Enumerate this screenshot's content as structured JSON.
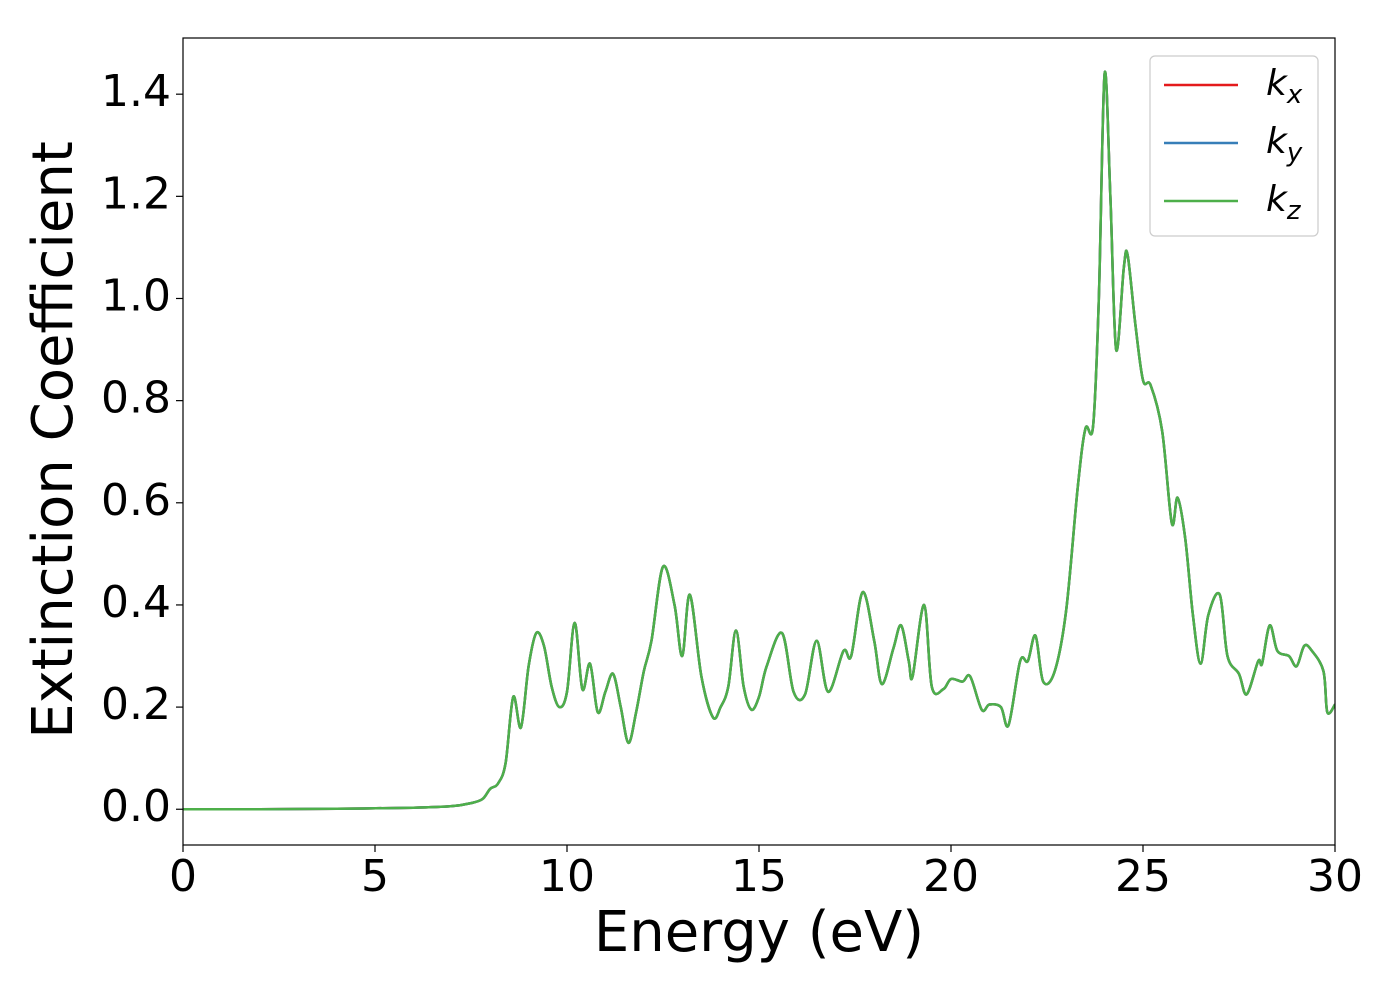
{
  "chart_data": {
    "type": "line",
    "xlabel": "Energy (eV)",
    "ylabel": "Extinction Coefficient",
    "x": [
      0,
      2,
      4,
      6,
      7,
      7.5,
      7.8,
      8,
      8.2,
      8.4,
      8.6,
      8.8,
      9,
      9.2,
      9.4,
      9.6,
      9.8,
      10,
      10.2,
      10.4,
      10.6,
      10.8,
      11,
      11.2,
      11.4,
      11.6,
      11.8,
      12,
      12.2,
      12.5,
      12.8,
      13,
      13.2,
      13.5,
      13.8,
      14,
      14.2,
      14.4,
      14.6,
      14.8,
      15,
      15.2,
      15.6,
      15.9,
      16.2,
      16.5,
      16.8,
      17.2,
      17.4,
      17.7,
      18,
      18.2,
      18.5,
      18.7,
      18.9,
      19,
      19.3,
      19.5,
      19.8,
      20,
      20.3,
      20.5,
      20.8,
      21,
      21.3,
      21.5,
      21.8,
      22,
      22.2,
      22.4,
      22.7,
      23,
      23.3,
      23.5,
      23.7,
      23.85,
      24,
      24.15,
      24.3,
      24.5,
      24.6,
      24.8,
      25,
      25.2,
      25.5,
      25.75,
      25.9,
      26.1,
      26.3,
      26.5,
      26.7,
      27,
      27.2,
      27.5,
      27.7,
      28,
      28.1,
      28.3,
      28.5,
      28.8,
      29,
      29.2,
      29.4,
      29.7,
      29.8,
      30
    ],
    "series": [
      {
        "name": "kx",
        "color": "#e41a1c",
        "values": [
          0,
          0,
          0.001,
          0.003,
          0.006,
          0.012,
          0.02,
          0.04,
          0.05,
          0.09,
          0.22,
          0.16,
          0.28,
          0.345,
          0.32,
          0.24,
          0.2,
          0.23,
          0.365,
          0.235,
          0.285,
          0.19,
          0.23,
          0.265,
          0.2,
          0.13,
          0.19,
          0.27,
          0.33,
          0.475,
          0.4,
          0.3,
          0.42,
          0.26,
          0.18,
          0.2,
          0.24,
          0.35,
          0.24,
          0.195,
          0.22,
          0.28,
          0.345,
          0.23,
          0.225,
          0.33,
          0.23,
          0.31,
          0.3,
          0.425,
          0.33,
          0.245,
          0.315,
          0.36,
          0.29,
          0.26,
          0.4,
          0.24,
          0.235,
          0.255,
          0.25,
          0.26,
          0.195,
          0.205,
          0.2,
          0.165,
          0.29,
          0.29,
          0.34,
          0.25,
          0.27,
          0.39,
          0.63,
          0.745,
          0.75,
          1.0,
          1.44,
          1.2,
          0.9,
          1.06,
          1.085,
          0.95,
          0.84,
          0.83,
          0.74,
          0.56,
          0.61,
          0.53,
          0.38,
          0.285,
          0.38,
          0.42,
          0.3,
          0.265,
          0.225,
          0.29,
          0.285,
          0.36,
          0.31,
          0.3,
          0.28,
          0.32,
          0.31,
          0.27,
          0.19,
          0.205
        ]
      },
      {
        "name": "ky",
        "color": "#377eb8",
        "values": [
          0,
          0,
          0.001,
          0.003,
          0.006,
          0.012,
          0.02,
          0.04,
          0.05,
          0.09,
          0.22,
          0.16,
          0.28,
          0.345,
          0.32,
          0.24,
          0.2,
          0.23,
          0.365,
          0.235,
          0.285,
          0.19,
          0.23,
          0.265,
          0.2,
          0.13,
          0.19,
          0.27,
          0.33,
          0.475,
          0.4,
          0.3,
          0.42,
          0.26,
          0.18,
          0.2,
          0.24,
          0.35,
          0.24,
          0.195,
          0.22,
          0.28,
          0.345,
          0.23,
          0.225,
          0.33,
          0.23,
          0.31,
          0.3,
          0.425,
          0.33,
          0.245,
          0.315,
          0.36,
          0.29,
          0.26,
          0.4,
          0.24,
          0.235,
          0.255,
          0.25,
          0.26,
          0.195,
          0.205,
          0.2,
          0.165,
          0.29,
          0.29,
          0.34,
          0.25,
          0.27,
          0.39,
          0.63,
          0.745,
          0.75,
          1.0,
          1.44,
          1.2,
          0.9,
          1.06,
          1.085,
          0.95,
          0.84,
          0.83,
          0.74,
          0.56,
          0.61,
          0.53,
          0.38,
          0.285,
          0.38,
          0.42,
          0.3,
          0.265,
          0.225,
          0.29,
          0.285,
          0.36,
          0.31,
          0.3,
          0.28,
          0.32,
          0.31,
          0.27,
          0.19,
          0.205
        ]
      },
      {
        "name": "kz",
        "color": "#4daf4a",
        "values": [
          0,
          0,
          0.001,
          0.003,
          0.006,
          0.012,
          0.02,
          0.04,
          0.05,
          0.09,
          0.22,
          0.16,
          0.28,
          0.345,
          0.32,
          0.24,
          0.2,
          0.23,
          0.365,
          0.235,
          0.285,
          0.19,
          0.23,
          0.265,
          0.2,
          0.13,
          0.19,
          0.27,
          0.33,
          0.475,
          0.4,
          0.3,
          0.42,
          0.26,
          0.18,
          0.2,
          0.24,
          0.35,
          0.24,
          0.195,
          0.22,
          0.28,
          0.345,
          0.23,
          0.225,
          0.33,
          0.23,
          0.31,
          0.3,
          0.425,
          0.33,
          0.245,
          0.315,
          0.36,
          0.29,
          0.26,
          0.4,
          0.24,
          0.235,
          0.255,
          0.25,
          0.26,
          0.195,
          0.205,
          0.2,
          0.165,
          0.29,
          0.29,
          0.34,
          0.25,
          0.27,
          0.39,
          0.63,
          0.745,
          0.75,
          1.0,
          1.44,
          1.2,
          0.9,
          1.06,
          1.085,
          0.95,
          0.84,
          0.83,
          0.74,
          0.56,
          0.61,
          0.53,
          0.38,
          0.285,
          0.38,
          0.42,
          0.3,
          0.265,
          0.225,
          0.29,
          0.285,
          0.36,
          0.31,
          0.3,
          0.28,
          0.32,
          0.31,
          0.27,
          0.19,
          0.205
        ]
      }
    ],
    "xlim": [
      0,
      30
    ],
    "xticks": [
      0,
      5,
      10,
      15,
      20,
      25,
      30
    ],
    "ylim": [
      -0.07,
      1.51
    ],
    "yticks": [
      {
        "value": 0,
        "label": "0.0"
      },
      0.2,
      0.4,
      0.6,
      0.8,
      {
        "value": 1,
        "label": "1.0"
      },
      1.2,
      1.4
    ],
    "grid": false,
    "legend": "upper right"
  }
}
